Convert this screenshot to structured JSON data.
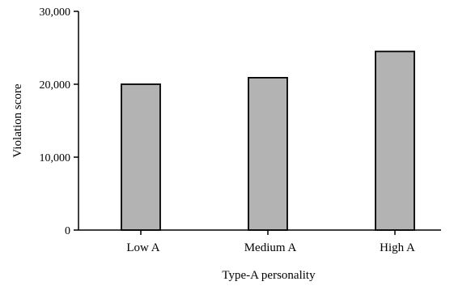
{
  "chart_data": {
    "type": "bar",
    "title": "",
    "xlabel": "Type-A personality",
    "ylabel": "Violation score",
    "categories": [
      "Low A",
      "Medium A",
      "High A"
    ],
    "values": [
      20000,
      20900,
      24500
    ],
    "ylim": [
      0,
      30000
    ],
    "yticks": [
      0,
      10000,
      20000,
      30000
    ],
    "ytick_labels": [
      "0",
      "10,000",
      "20,000",
      "30,000"
    ],
    "grid": false,
    "legend": "none",
    "colors": {
      "bar_fill": "#b3b3b3",
      "bar_stroke": "#000000",
      "axis": "#000000"
    }
  }
}
